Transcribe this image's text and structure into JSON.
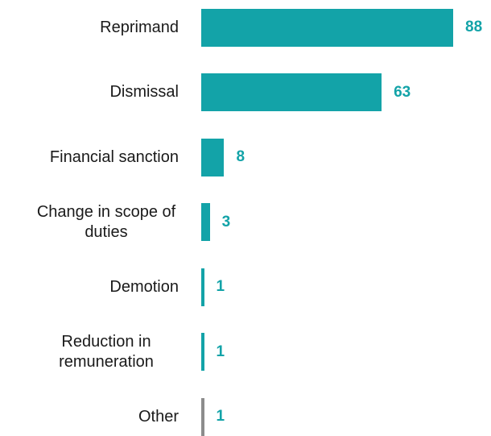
{
  "chart_data": {
    "type": "bar",
    "orientation": "horizontal",
    "categories": [
      "Reprimand",
      "Dismissal",
      "Financial sanction",
      "Change in scope of duties",
      "Demotion",
      "Reduction in remuneration",
      "Other"
    ],
    "values": [
      88,
      63,
      8,
      3,
      1,
      1,
      1
    ],
    "colors": [
      "#13a3a8",
      "#13a3a8",
      "#13a3a8",
      "#13a3a8",
      "#13a3a8",
      "#13a3a8",
      "#8c8c8c"
    ]
  }
}
